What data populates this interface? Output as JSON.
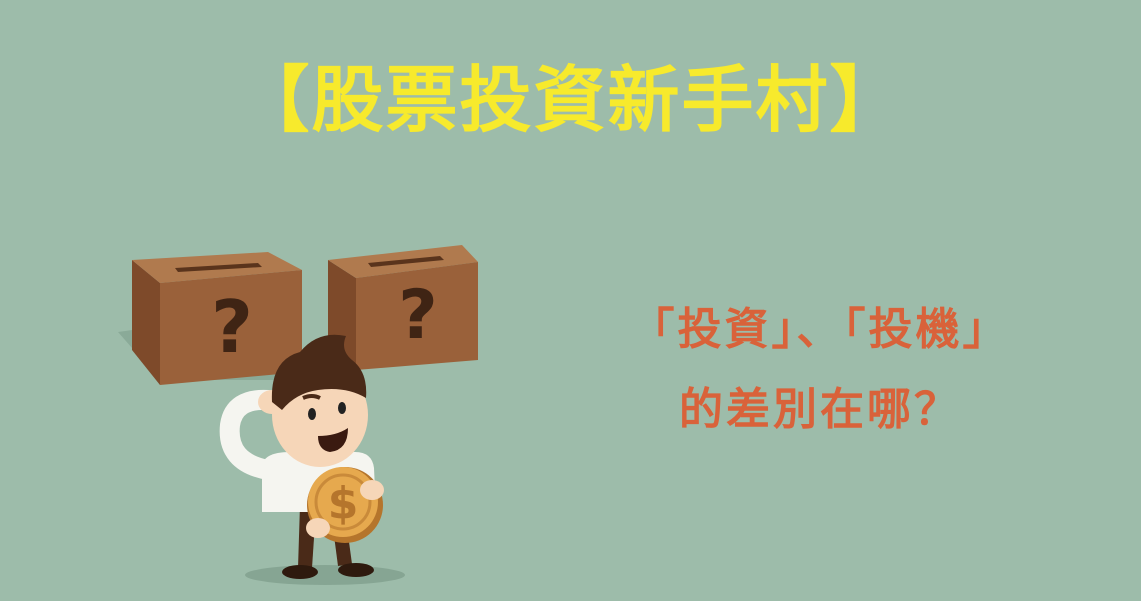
{
  "colors": {
    "background": "#9dbcaa",
    "title": "#f7ea2c",
    "question": "#d9623a",
    "box_front": "#9a613a",
    "box_side": "#7e4a2a",
    "box_top": "#b07a4e",
    "box_mark": "#3f2414",
    "coin": "#e6a94e",
    "coin_edge": "#b5752c"
  },
  "title": "【股票投資新手村】",
  "question": {
    "line1": "「投資」、「投機」",
    "line2": "的差別在哪？"
  },
  "illustration": {
    "box_left_mark": "?",
    "box_right_mark": "?",
    "coin_symbol": "$"
  }
}
